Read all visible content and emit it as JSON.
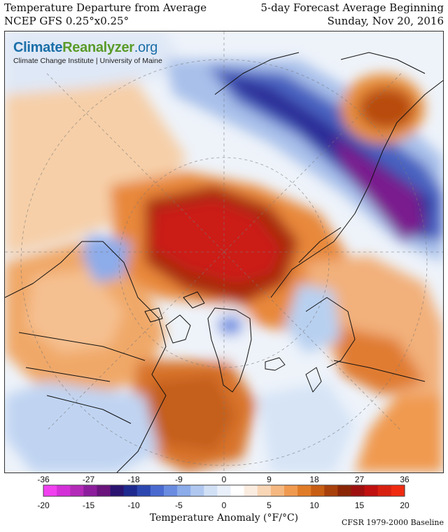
{
  "header": {
    "title": "Temperature Departure from Average",
    "model": "NCEP GFS 0.25°x0.25°",
    "forecast_label": "5-day Forecast Average Beginning",
    "date": "Sunday, Nov 20, 2016"
  },
  "logo": {
    "name_part1": "Climate",
    "name_part2": "Reanalyzer",
    "name_part3": ".org",
    "subtitle": "Climate Change Institute | University of Maine"
  },
  "legend": {
    "title": "Temperature Anomaly (°F/°C)",
    "baseline": "CFSR 1979-2000 Baseline",
    "f_ticks": [
      "-36",
      "-27",
      "-18",
      "-9",
      "0",
      "9",
      "18",
      "27",
      "36"
    ],
    "c_ticks": [
      "-20",
      "-15",
      "-10",
      "-5",
      "0",
      "5",
      "10",
      "15",
      "20"
    ],
    "colors": [
      "#f040f0",
      "#d430d8",
      "#b42ab8",
      "#8c1e9c",
      "#6a147c",
      "#2a1470",
      "#1e2a8e",
      "#2c48b0",
      "#4a6ad0",
      "#6a8ce0",
      "#8cacea",
      "#b0c8f0",
      "#d2e0f6",
      "#eaf0fa",
      "#ffffff",
      "#fbece0",
      "#f8d6b6",
      "#f4b880",
      "#f09a50",
      "#e07c28",
      "#c85e14",
      "#a8400c",
      "#8a2606",
      "#9e1010",
      "#c01010",
      "#d82010",
      "#f02a10"
    ]
  }
}
